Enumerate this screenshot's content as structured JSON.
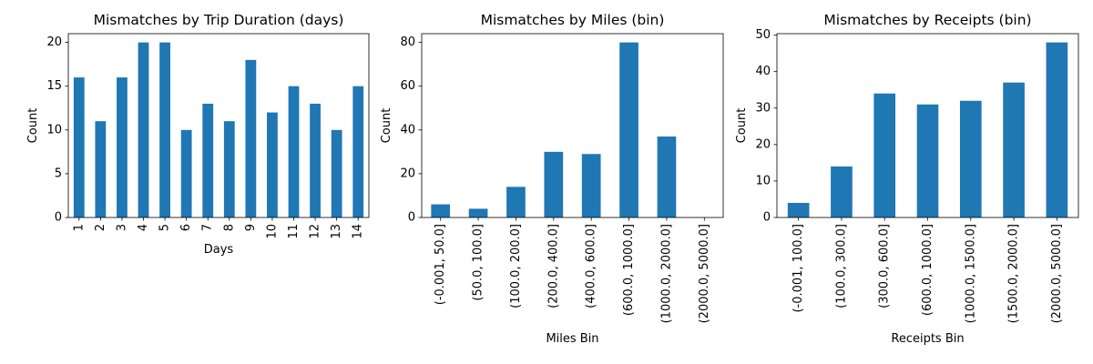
{
  "style": {
    "bar_color": "#1f77b4",
    "axis_color": "#000000",
    "background": "#ffffff"
  },
  "chart_data": [
    {
      "type": "bar",
      "title": "Mismatches by Trip Duration (days)",
      "xlabel": "Days",
      "ylabel": "Count",
      "categories": [
        "1",
        "2",
        "3",
        "4",
        "5",
        "6",
        "7",
        "8",
        "9",
        "10",
        "11",
        "12",
        "13",
        "14"
      ],
      "values": [
        16,
        11,
        16,
        20,
        20,
        10,
        13,
        11,
        18,
        12,
        15,
        13,
        10,
        15
      ],
      "ylim": [
        0,
        21
      ],
      "yticks": [
        0,
        5,
        10,
        15,
        20
      ],
      "grid": false
    },
    {
      "type": "bar",
      "title": "Mismatches by Miles (bin)",
      "xlabel": "Miles Bin",
      "ylabel": "Count",
      "categories": [
        "(-0.001, 50.0]",
        "(50.0, 100.0]",
        "(100.0, 200.0]",
        "(200.0, 400.0]",
        "(400.0, 600.0]",
        "(600.0, 1000.0]",
        "(1000.0, 2000.0]",
        "(2000.0, 5000.0]"
      ],
      "values": [
        6,
        4,
        14,
        30,
        29,
        80,
        37,
        0
      ],
      "ylim": [
        0,
        84
      ],
      "yticks": [
        0,
        20,
        40,
        60,
        80
      ],
      "grid": false
    },
    {
      "type": "bar",
      "title": "Mismatches by Receipts (bin)",
      "xlabel": "Receipts Bin",
      "ylabel": "Count",
      "categories": [
        "(-0.001, 100.0]",
        "(100.0, 300.0]",
        "(300.0, 600.0]",
        "(600.0, 1000.0]",
        "(1000.0, 1500.0]",
        "(1500.0, 2000.0]",
        "(2000.0, 5000.0]"
      ],
      "values": [
        4,
        14,
        34,
        31,
        32,
        37,
        48
      ],
      "ylim": [
        0,
        50.4
      ],
      "yticks": [
        0,
        10,
        20,
        30,
        40,
        50
      ],
      "grid": false
    }
  ]
}
